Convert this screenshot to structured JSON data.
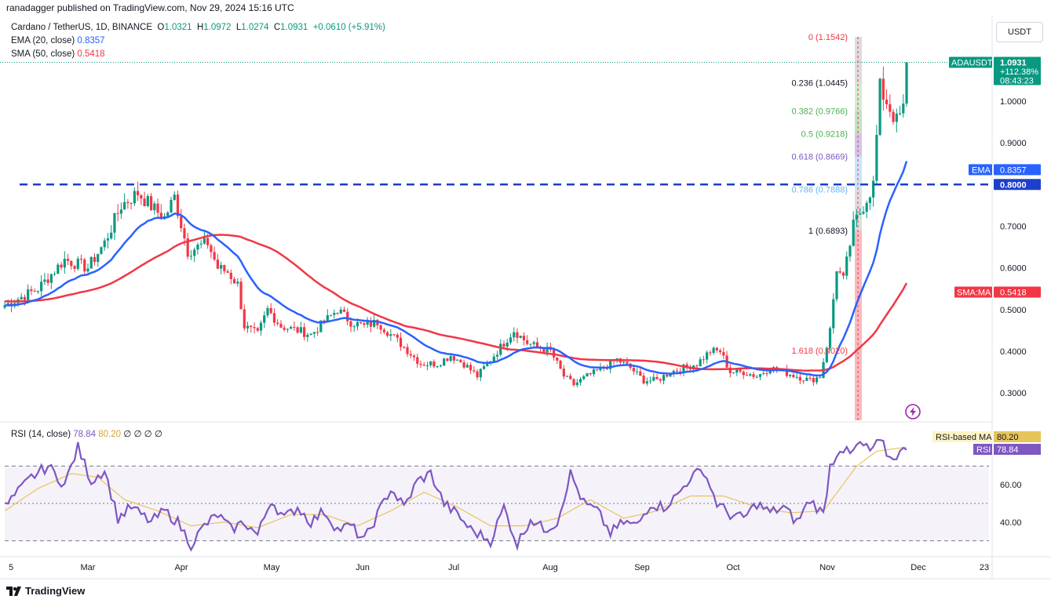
{
  "header": {
    "publish_line": "ranadagger published on TradingView.com, Nov 29, 2024 15:16 UTC",
    "symbol_line": "Cardano / TetherUS, 1D, BINANCE",
    "o_label": "O",
    "o_value": "1.0321",
    "h_label": "H",
    "h_value": "1.0972",
    "l_label": "L",
    "l_value": "1.0274",
    "c_label": "C",
    "c_value": "1.0931",
    "change": "+0.0610 (+5.91%)",
    "ema_label": "EMA (20, close)",
    "ema_value": "0.8357",
    "sma_label": "SMA (50, close)",
    "sma_value": "0.5418",
    "rsi_label": "RSI (14, close)",
    "rsi_value": "78.84",
    "rsi_ma_value": "80.20",
    "rsi_extra": "∅ ∅ ∅ ∅"
  },
  "currency_button": "USDT",
  "brand": "TradingView",
  "colors": {
    "up": "#089981",
    "down": "#f23645",
    "ema": "#2962ff",
    "sma": "#f23645",
    "rsi": "#7e57c2",
    "rsi_ma": "#e7c55a",
    "level": "#1e3ecb"
  },
  "chart_data": [
    {
      "type": "candlestick",
      "title": "Cardano / TetherUS, 1D, BINANCE",
      "y_ticks": [
        "1.0000",
        "0.9000",
        "0.7000",
        "0.6000",
        "0.5000",
        "0.4000",
        "0.3000"
      ],
      "x_ticks": [
        "5",
        "Mar",
        "Apr",
        "May",
        "Jun",
        "Jul",
        "Aug",
        "Sep",
        "Oct",
        "Nov",
        "Dec",
        "23"
      ],
      "ylim": [
        0.23,
        1.17
      ],
      "price_badge": {
        "symbol": "ADAUSDT",
        "value": "1.0931",
        "change": "+112.38%",
        "countdown": "08:43:23"
      },
      "ema_badge": {
        "label": "EMA",
        "value": "0.8357"
      },
      "level_badge": {
        "value": "0.8000"
      },
      "sma_badge": {
        "label": "SMA:MA",
        "value": "0.5418"
      },
      "horizontal_level": 0.8,
      "fib_levels": [
        {
          "label": "0 (1.1542)",
          "value": 1.1542
        },
        {
          "label": "0.236 (1.0445)",
          "value": 1.0445
        },
        {
          "label": "0.382 (0.9766)",
          "value": 0.9766
        },
        {
          "label": "0.5 (0.9218)",
          "value": 0.9218
        },
        {
          "label": "0.618 (0.8669)",
          "value": 0.8669
        },
        {
          "label": "0.786 (0.7888)",
          "value": 0.7888
        },
        {
          "label": "1 (0.6893)",
          "value": 0.6893
        },
        {
          "label": "1.618 (0.4020)",
          "value": 0.402
        }
      ],
      "price_anchors": [
        [
          0,
          0.51
        ],
        [
          10,
          0.55
        ],
        [
          18,
          0.62
        ],
        [
          25,
          0.6
        ],
        [
          30,
          0.66
        ],
        [
          35,
          0.75
        ],
        [
          40,
          0.78
        ],
        [
          45,
          0.74
        ],
        [
          48,
          0.72
        ],
        [
          51,
          0.77
        ],
        [
          55,
          0.64
        ],
        [
          58,
          0.65
        ],
        [
          61,
          0.66
        ],
        [
          64,
          0.6
        ],
        [
          67,
          0.59
        ],
        [
          70,
          0.56
        ],
        [
          72,
          0.46
        ],
        [
          76,
          0.44
        ],
        [
          79,
          0.5
        ],
        [
          83,
          0.46
        ],
        [
          88,
          0.45
        ],
        [
          92,
          0.44
        ],
        [
          96,
          0.47
        ],
        [
          100,
          0.5
        ],
        [
          104,
          0.47
        ],
        [
          108,
          0.46
        ],
        [
          112,
          0.47
        ],
        [
          116,
          0.44
        ],
        [
          120,
          0.41
        ],
        [
          125,
          0.37
        ],
        [
          130,
          0.37
        ],
        [
          134,
          0.39
        ],
        [
          138,
          0.37
        ],
        [
          142,
          0.34
        ],
        [
          146,
          0.38
        ],
        [
          150,
          0.42
        ],
        [
          153,
          0.45
        ],
        [
          157,
          0.42
        ],
        [
          160,
          0.41
        ],
        [
          164,
          0.4
        ],
        [
          168,
          0.34
        ],
        [
          171,
          0.32
        ],
        [
          175,
          0.34
        ],
        [
          180,
          0.36
        ],
        [
          184,
          0.38
        ],
        [
          188,
          0.36
        ],
        [
          192,
          0.33
        ],
        [
          196,
          0.33
        ],
        [
          200,
          0.35
        ],
        [
          204,
          0.36
        ],
        [
          208,
          0.37
        ],
        [
          212,
          0.4
        ],
        [
          215,
          0.4
        ],
        [
          218,
          0.35
        ],
        [
          222,
          0.35
        ],
        [
          226,
          0.34
        ],
        [
          230,
          0.36
        ],
        [
          234,
          0.35
        ],
        [
          238,
          0.34
        ],
        [
          242,
          0.33
        ],
        [
          245,
          0.34
        ],
        [
          248,
          0.45
        ],
        [
          250,
          0.6
        ],
        [
          252,
          0.57
        ],
        [
          255,
          0.7
        ],
        [
          258,
          0.75
        ],
        [
          261,
          0.8
        ],
        [
          263,
          1.03
        ],
        [
          265,
          1.0
        ],
        [
          268,
          0.95
        ],
        [
          270,
          0.98
        ],
        [
          271,
          1.0931
        ]
      ],
      "rsi": {
        "ticks": [
          "60.00",
          "40.00"
        ],
        "ylim": [
          22,
          85
        ],
        "bands": [
          70,
          50,
          30
        ],
        "rsi_ma_badge": {
          "label": "RSI-based MA",
          "value": "80.20"
        },
        "rsi_badge": {
          "label": "RSI",
          "value": "78.84"
        },
        "anchors": [
          [
            0,
            48
          ],
          [
            8,
            64
          ],
          [
            13,
            70
          ],
          [
            18,
            60
          ],
          [
            22,
            80
          ],
          [
            26,
            62
          ],
          [
            30,
            68
          ],
          [
            34,
            42
          ],
          [
            38,
            48
          ],
          [
            44,
            40
          ],
          [
            48,
            46
          ],
          [
            52,
            40
          ],
          [
            56,
            28
          ],
          [
            60,
            38
          ],
          [
            64,
            44
          ],
          [
            68,
            36
          ],
          [
            72,
            40
          ],
          [
            76,
            33
          ],
          [
            80,
            52
          ],
          [
            84,
            42
          ],
          [
            88,
            48
          ],
          [
            92,
            40
          ],
          [
            96,
            46
          ],
          [
            100,
            36
          ],
          [
            104,
            38
          ],
          [
            108,
            30
          ],
          [
            112,
            44
          ],
          [
            116,
            58
          ],
          [
            120,
            48
          ],
          [
            124,
            62
          ],
          [
            128,
            66
          ],
          [
            132,
            50
          ],
          [
            136,
            44
          ],
          [
            140,
            36
          ],
          [
            146,
            30
          ],
          [
            150,
            48
          ],
          [
            154,
            28
          ],
          [
            158,
            42
          ],
          [
            162,
            36
          ],
          [
            166,
            40
          ],
          [
            170,
            66
          ],
          [
            174,
            50
          ],
          [
            178,
            46
          ],
          [
            182,
            34
          ],
          [
            186,
            40
          ],
          [
            190,
            38
          ],
          [
            194,
            50
          ],
          [
            198,
            48
          ],
          [
            202,
            54
          ],
          [
            206,
            64
          ],
          [
            210,
            68
          ],
          [
            214,
            50
          ],
          [
            218,
            44
          ],
          [
            222,
            42
          ],
          [
            226,
            50
          ],
          [
            230,
            45
          ],
          [
            234,
            48
          ],
          [
            238,
            40
          ],
          [
            242,
            52
          ],
          [
            246,
            44
          ],
          [
            248,
            70
          ],
          [
            251,
            80
          ],
          [
            254,
            76
          ],
          [
            257,
            82
          ],
          [
            260,
            78
          ],
          [
            263,
            84
          ],
          [
            266,
            74
          ],
          [
            268,
            76
          ],
          [
            271,
            78.84
          ]
        ],
        "ma_anchors": [
          [
            0,
            46
          ],
          [
            10,
            58
          ],
          [
            20,
            66
          ],
          [
            28,
            64
          ],
          [
            36,
            52
          ],
          [
            46,
            46
          ],
          [
            56,
            38
          ],
          [
            66,
            40
          ],
          [
            76,
            37
          ],
          [
            86,
            44
          ],
          [
            96,
            44
          ],
          [
            106,
            38
          ],
          [
            116,
            46
          ],
          [
            126,
            56
          ],
          [
            136,
            48
          ],
          [
            146,
            38
          ],
          [
            156,
            38
          ],
          [
            166,
            42
          ],
          [
            176,
            52
          ],
          [
            186,
            42
          ],
          [
            196,
            46
          ],
          [
            206,
            54
          ],
          [
            216,
            54
          ],
          [
            226,
            48
          ],
          [
            236,
            45
          ],
          [
            246,
            46
          ],
          [
            251,
            58
          ],
          [
            256,
            70
          ],
          [
            262,
            78
          ],
          [
            271,
            80.2
          ]
        ]
      }
    }
  ]
}
